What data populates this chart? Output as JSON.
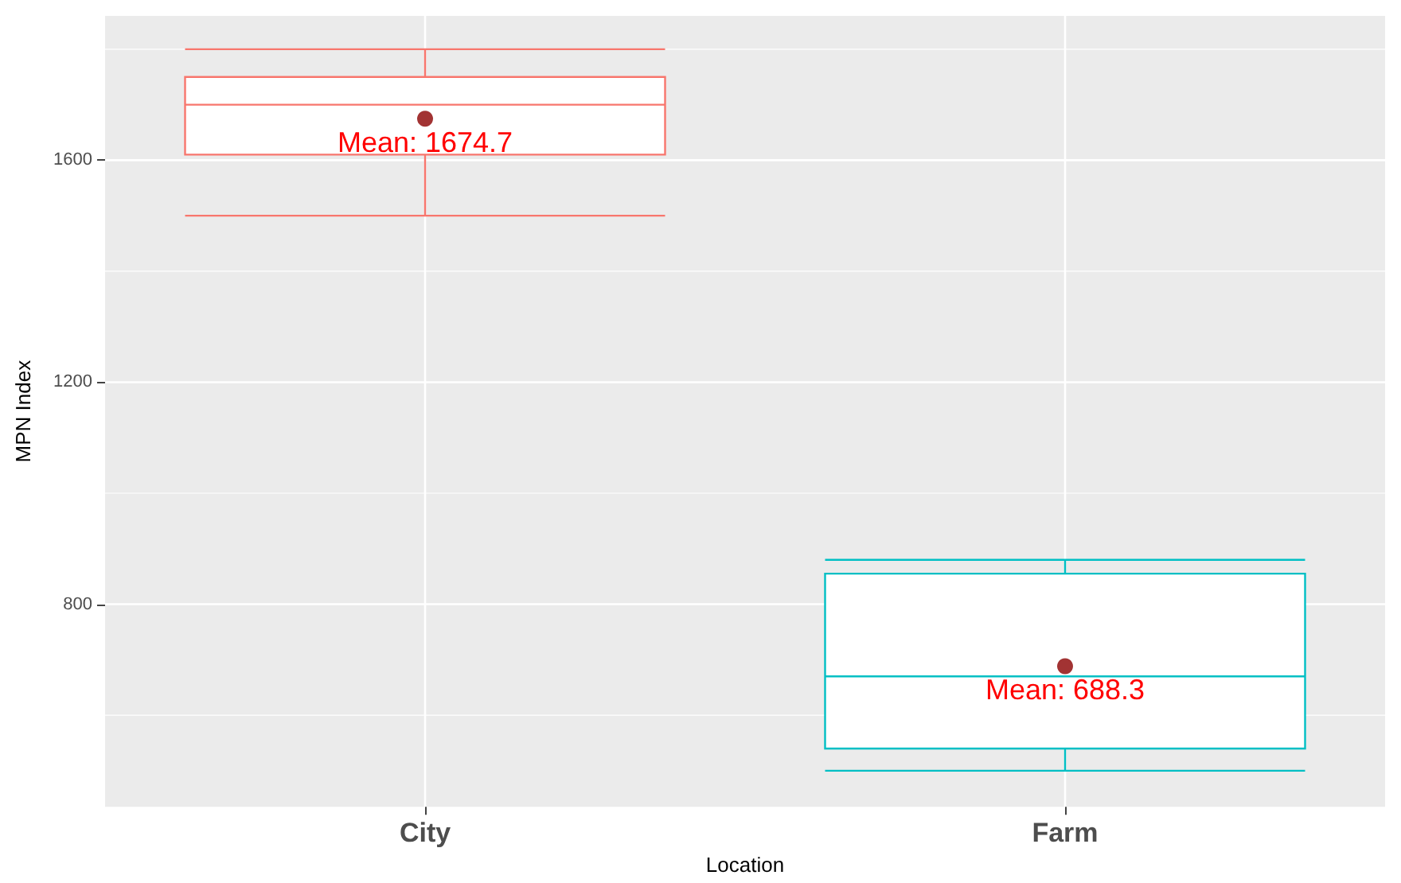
{
  "chart_data": {
    "type": "box",
    "xlabel": "Location",
    "ylabel": "MPN Index",
    "categories": [
      "City",
      "Farm"
    ],
    "series": [
      {
        "colors": [
          "#f8766d",
          "#00bfc4"
        ],
        "boxes": [
          {
            "low": 1500,
            "q1": 1610,
            "median": 1700,
            "q3": 1750,
            "high": 1800
          },
          {
            "low": 500,
            "q1": 540,
            "median": 670,
            "q3": 855,
            "high": 880
          }
        ]
      },
      {
        "type": "scatter",
        "color": "#8b0000",
        "x": [
          "City",
          "Farm"
        ],
        "values": [
          1674.7,
          688.3
        ]
      }
    ],
    "annotations": [
      {
        "text": "Mean: 1674.7",
        "x": "City",
        "y": 1674.7
      },
      {
        "text": "Mean: 688.3",
        "x": "Farm",
        "y": 688.3
      }
    ],
    "ylim": [
      435,
      1860
    ],
    "yticks": [
      800,
      1200,
      1600
    ],
    "grid": true,
    "marker": "circle"
  }
}
